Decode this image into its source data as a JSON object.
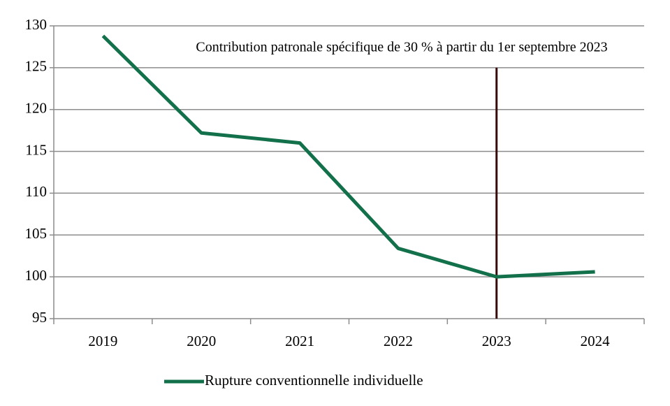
{
  "chart_data": {
    "type": "line",
    "categories": [
      "2019",
      "2020",
      "2021",
      "2022",
      "2023",
      "2024"
    ],
    "series": [
      {
        "name": "Rupture conventionnelle individuelle",
        "color": "#12704a",
        "values": [
          128.8,
          117.2,
          116.0,
          103.4,
          100.0,
          100.6
        ]
      }
    ],
    "ylim": [
      95,
      130
    ],
    "yticks": [
      95,
      100,
      105,
      110,
      115,
      120,
      125,
      130
    ],
    "grid": true,
    "annotation": {
      "text": "Contribution patronale spécifique de 30 % à partir du 1er septembre 2023",
      "x": "2023",
      "ymax": 125,
      "color": "#3a0a0a"
    },
    "legend": "bottom"
  }
}
